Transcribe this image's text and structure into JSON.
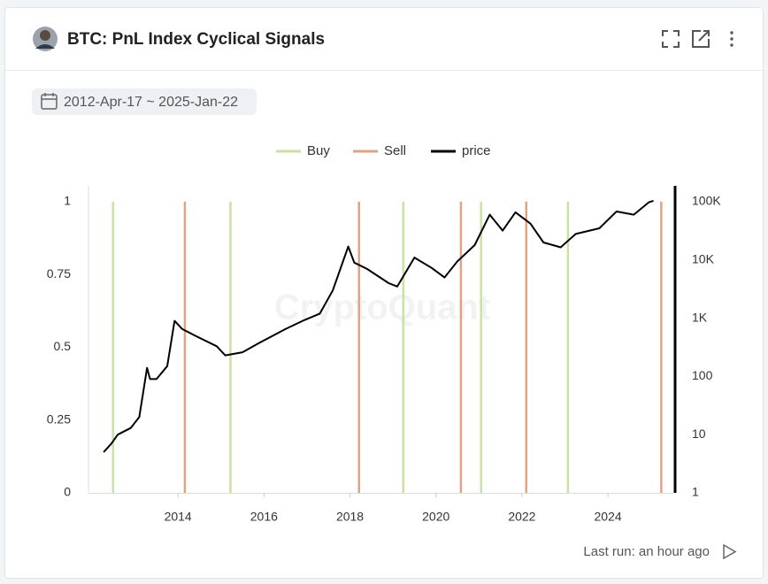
{
  "header": {
    "title": "BTC: PnL Index Cyclical Signals"
  },
  "date_range": "2012-Apr-17 ~ 2025-Jan-22",
  "watermark": "CryptoQuant",
  "footer": {
    "last_run": "Last run: an hour ago"
  },
  "chart_data": {
    "type": "line",
    "legend": "top",
    "xlim": [
      2011.98,
      2025.5
    ],
    "xticks": [
      2014,
      2016,
      2018,
      2020,
      2022,
      2024
    ],
    "ylim": [
      0,
      1
    ],
    "yticks": [
      0,
      0.25,
      0.5,
      0.75,
      1
    ],
    "y2lim": [
      1,
      100000
    ],
    "y2scale": "log",
    "y2ticks": [
      1,
      10,
      100,
      {
        "value": 1000,
        "label": "1K"
      },
      {
        "value": 10000,
        "label": "10K"
      },
      {
        "value": 100000,
        "label": "100K"
      }
    ],
    "series": [
      {
        "name": "Buy",
        "type": "bar",
        "color": "#c9e2a2",
        "x": [
          2012.49,
          2015.22,
          2019.24,
          2021.05,
          2023.07
        ],
        "values": [
          1,
          1,
          1,
          1,
          1
        ]
      },
      {
        "name": "Sell",
        "type": "bar",
        "color": "#e2a384",
        "x": [
          2014.16,
          2018.21,
          2020.58,
          2022.1,
          2025.24
        ],
        "values": [
          1,
          1,
          1,
          1,
          1
        ]
      },
      {
        "name": "price",
        "type": "line",
        "color": "#000000",
        "axis": "y2",
        "x": [
          2012.27,
          2012.45,
          2012.6,
          2012.9,
          2013.1,
          2013.28,
          2013.35,
          2013.5,
          2013.75,
          2013.92,
          2014.1,
          2014.4,
          2014.9,
          2015.1,
          2015.5,
          2015.9,
          2016.5,
          2016.9,
          2017.3,
          2017.6,
          2017.96,
          2018.1,
          2018.4,
          2018.9,
          2019.1,
          2019.5,
          2019.9,
          2020.2,
          2020.5,
          2020.9,
          2021.25,
          2021.55,
          2021.85,
          2022.2,
          2022.5,
          2022.9,
          2023.25,
          2023.8,
          2024.2,
          2024.6,
          2024.95,
          2025.06
        ],
        "values": [
          5,
          7,
          10,
          13,
          20,
          140,
          90,
          90,
          150,
          900,
          650,
          500,
          330,
          230,
          260,
          380,
          650,
          900,
          1200,
          3000,
          17000,
          9000,
          7000,
          4000,
          3500,
          11000,
          7300,
          5000,
          9500,
          18000,
          60000,
          32000,
          66000,
          42000,
          20000,
          16500,
          28000,
          35000,
          68000,
          60000,
          98000,
          104000
        ]
      }
    ]
  }
}
